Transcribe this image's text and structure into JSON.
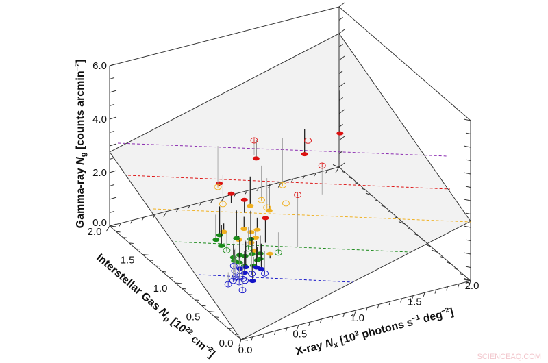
{
  "chart_data": {
    "type": "scatter3d",
    "axes": {
      "x": {
        "title_parts": [
          "X-ray ",
          "N",
          "x",
          " [10",
          "2",
          " photons s",
          "−1",
          " deg",
          "−2",
          "]"
        ],
        "range": [
          0,
          2.0
        ],
        "ticks": [
          "0.0",
          "0.5",
          "1.0",
          "1.5",
          "2.0"
        ]
      },
      "y": {
        "title_parts": [
          "Interstellar Gas ",
          "N",
          "p",
          " [10",
          "22",
          " cm",
          "−2",
          "]"
        ],
        "range": [
          0,
          2.0
        ],
        "ticks": [
          "0.0",
          "0.5",
          "1.0",
          "1.5",
          "2.0"
        ]
      },
      "z": {
        "title_parts": [
          "Gamma-ray ",
          "N",
          "g",
          " [counts arcmin",
          "−2",
          "]"
        ],
        "range": [
          0,
          6.0
        ],
        "ticks": [
          "0.0",
          "2.0",
          "4.0",
          "6.0"
        ]
      }
    },
    "plane": {
      "corners_z": {
        "x0_y0": 0.0,
        "x2_y0": 2.23,
        "x2_y2": 5.0,
        "x0_y2": 2.77
      },
      "fill": "#f2f2f2"
    },
    "colors": {
      "red": "#dd1111",
      "orange": "#f0b020",
      "green": "#1a8a1a",
      "blue": "#1414c8",
      "purple": "#8a2ab0",
      "axis": "#333333"
    },
    "series": [
      {
        "color": "red",
        "filled": true,
        "points": [
          [
            1.75,
            1.55,
            2.5
          ],
          [
            1.35,
            1.39,
            2.5
          ],
          [
            0.99,
            1.5,
            2.5
          ],
          [
            0.55,
            1.29,
            2.5
          ],
          [
            0.55,
            1.11,
            2.5
          ],
          [
            0.59,
            0.98,
            2.5
          ],
          [
            0.59,
            0.66,
            2.5
          ]
        ]
      },
      {
        "color": "red",
        "filled": false,
        "points": [
          [
            0.91,
            1.39,
            3.5
          ],
          [
            1.27,
            1.2,
            3.5
          ],
          [
            1.17,
            0.81,
            3.5
          ],
          [
            0.78,
            0.5,
            3.5
          ]
        ]
      },
      {
        "color": "orange",
        "filled": true,
        "points": [
          [
            0.79,
            1.24,
            1.5
          ],
          [
            0.88,
            1.11,
            1.5
          ],
          [
            0.57,
            0.95,
            1.5
          ],
          [
            0.41,
            0.98,
            1.5
          ],
          [
            0.59,
            0.88,
            1.5
          ],
          [
            0.65,
            0.89,
            1.5
          ],
          [
            0.45,
            0.82,
            1.5
          ],
          [
            0.58,
            0.79,
            1.5
          ],
          [
            0.51,
            0.74,
            1.5
          ],
          [
            0.47,
            0.62,
            1.5
          ],
          [
            0.55,
            0.52,
            1.5
          ]
        ]
      },
      {
        "color": "orange",
        "filled": false,
        "points": [
          [
            0.72,
            1.61,
            1.5
          ],
          [
            1.17,
            1.41,
            1.5
          ],
          [
            0.62,
            1.36,
            1.5
          ],
          [
            0.91,
            1.28,
            1.5
          ],
          [
            1.05,
            1.15,
            1.5
          ],
          [
            0.89,
            1.16,
            1.5
          ]
        ]
      },
      {
        "color": "green",
        "filled": true,
        "points": [
          [
            0.46,
            1.13,
            1.0
          ],
          [
            0.4,
            1.08,
            1.0
          ],
          [
            0.39,
            0.98,
            1.0
          ],
          [
            0.55,
            1.03,
            1.0
          ],
          [
            0.64,
            0.97,
            1.0
          ],
          [
            0.38,
            0.78,
            1.0
          ],
          [
            0.44,
            0.79,
            1.0
          ],
          [
            0.47,
            0.76,
            1.0
          ],
          [
            0.53,
            0.76,
            1.0
          ],
          [
            0.59,
            0.74,
            1.0
          ],
          [
            0.55,
            0.67,
            1.0
          ],
          [
            0.36,
            0.73,
            1.0
          ],
          [
            0.38,
            0.69,
            1.0
          ],
          [
            0.39,
            0.63,
            1.0
          ],
          [
            0.52,
            0.66,
            1.0
          ],
          [
            0.45,
            0.6,
            1.0
          ]
        ]
      },
      {
        "color": "green",
        "filled": false,
        "points": [
          [
            0.39,
            0.9,
            1.0
          ],
          [
            0.55,
            0.85,
            1.0
          ],
          [
            0.72,
            0.69,
            1.0
          ]
        ]
      },
      {
        "color": "blue",
        "filled": true,
        "points": [
          [
            0.42,
            0.75,
            0.6
          ],
          [
            0.47,
            0.75,
            0.6
          ],
          [
            0.42,
            0.68,
            0.6
          ],
          [
            0.56,
            0.67,
            0.6
          ],
          [
            0.54,
            0.71,
            0.6
          ],
          [
            0.41,
            0.54,
            0.6
          ]
        ]
      },
      {
        "color": "blue",
        "filled": false,
        "points": [
          [
            0.4,
            0.81,
            0.6
          ],
          [
            0.37,
            0.74,
            0.6
          ],
          [
            0.32,
            0.65,
            0.6
          ],
          [
            0.36,
            0.65,
            0.6
          ],
          [
            0.36,
            0.6,
            0.6
          ],
          [
            0.46,
            0.64,
            0.6
          ],
          [
            0.55,
            0.6,
            0.6
          ],
          [
            0.22,
            0.58,
            0.6
          ],
          [
            0.28,
            0.61,
            0.6
          ],
          [
            0.31,
            0.57,
            0.6
          ],
          [
            0.36,
            0.57,
            0.6
          ],
          [
            0.27,
            0.45,
            0.6
          ]
        ]
      }
    ],
    "reference_lines": [
      "purple",
      "red",
      "orange",
      "green",
      "blue"
    ],
    "grid": false,
    "legend": "none"
  },
  "watermark": "SCIENCEAQ.COM"
}
